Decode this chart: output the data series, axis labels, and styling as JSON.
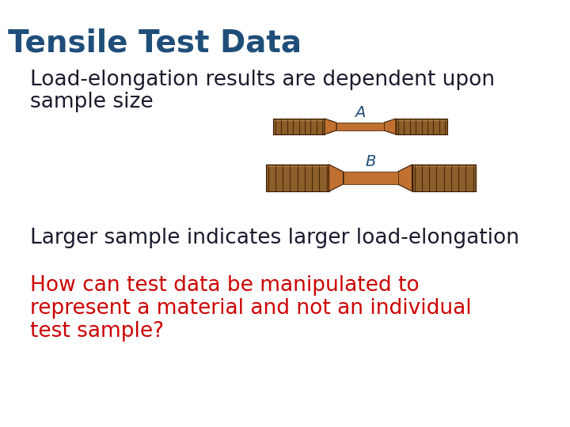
{
  "title": "Tensile Test Data",
  "title_color": "#1F4E79",
  "title_fontsize": 28,
  "line1": "Load-elongation results are dependent upon",
  "line2": "sample size",
  "text_color_dark": "#1a1a2e",
  "body_fontsize": 19,
  "label_A": "A",
  "label_B": "B",
  "label_color": "#1F4E79",
  "label_fontsize": 14,
  "line3": "Larger sample indicates larger load-elongation",
  "line3_fontsize": 19,
  "question_line1": "How can test data be manipulated to",
  "question_line2": "represent a material and not an individual",
  "question_line3": "test sample?",
  "question_color": "#CC0000",
  "question_fontsize": 19,
  "bg_color": "#FFFFFF",
  "specimen_color_body": "#C07030",
  "specimen_color_grip": "#8B5E2A",
  "specimen_color_thread": "#4a2a0a",
  "specimen_color_neck": "#B06020"
}
